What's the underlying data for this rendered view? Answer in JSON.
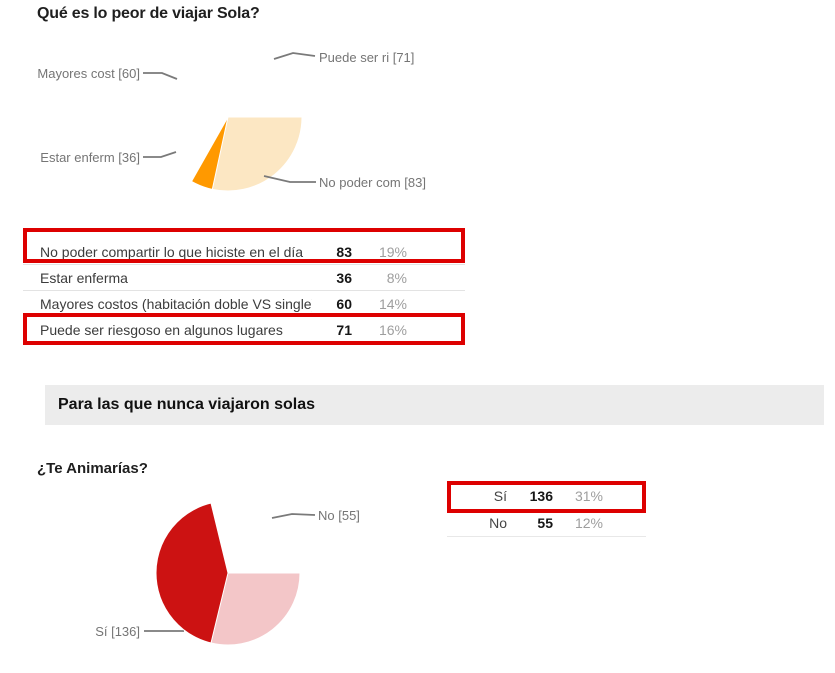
{
  "section1": {
    "title": "Qué es lo peor de viajar Sola?",
    "pie_labels": {
      "puede": "Puede ser ri [71]",
      "mayores": "Mayores cost [60]",
      "estar": "Estar enferm [36]",
      "no_poder": "No poder com [83]"
    },
    "table": {
      "rows": [
        {
          "label": "No poder compartir lo que hiciste en el día",
          "value": "83",
          "pct": "19%",
          "highlighted": true
        },
        {
          "label": "Estar enferma",
          "value": "36",
          "pct": "8%",
          "highlighted": false
        },
        {
          "label": "Mayores costos (habitación doble VS single)",
          "value": "60",
          "pct": "14%",
          "highlighted": false
        },
        {
          "label": "Puede ser riesgoso en algunos lugares",
          "value": "71",
          "pct": "16%",
          "highlighted": true
        }
      ]
    }
  },
  "section2": {
    "header": "Para las que nunca viajaron solas",
    "title": "¿Te Animarías?",
    "pie_labels": {
      "no": "No [55]",
      "si": "Sí [136]"
    },
    "table": {
      "rows": [
        {
          "label": "Sí",
          "value": "136",
          "pct": "31%",
          "highlighted": true
        },
        {
          "label": "No",
          "value": "55",
          "pct": "12%",
          "highlighted": false
        }
      ]
    }
  },
  "colors": {
    "annotation_red": "#dd0000",
    "section_bar_bg": "#ececec",
    "callout_text": "#757575",
    "leader_line": "#7a7a7a"
  },
  "chart_data": [
    {
      "type": "pie",
      "title": "Qué es lo peor de viajar Sola?",
      "start": "3-oclock-clockwise",
      "legend_position": "callout-labels",
      "slices": [
        {
          "label": "No poder compartir lo que hiciste en el día",
          "callout": "No poder com [83]",
          "value": 83,
          "pct": "19%",
          "color": "#FF9900"
        },
        {
          "label": "Estar enferma",
          "callout": "Estar enferm [36]",
          "value": 36,
          "pct": "8%",
          "color": "#FFAC4B"
        },
        {
          "label": "Mayores costos (habitación doble VS single)",
          "callout": "Mayores cost [60]",
          "value": 60,
          "pct": "14%",
          "color": "#FCC87E"
        },
        {
          "label": "Puede ser riesgoso en algunos lugares",
          "callout": "Puede ser ri [71]",
          "value": 71,
          "pct": "16%",
          "color": "#FCE7C3"
        }
      ]
    },
    {
      "type": "pie",
      "title": "¿Te Animarías?",
      "start": "3-oclock-clockwise",
      "legend_position": "callout-labels",
      "slices": [
        {
          "label": "Sí",
          "callout": "Sí [136]",
          "value": 136,
          "pct": "31%",
          "color": "#CC1212"
        },
        {
          "label": "No",
          "callout": "No [55]",
          "value": 55,
          "pct": "12%",
          "color": "#F3C6C8"
        }
      ]
    }
  ]
}
